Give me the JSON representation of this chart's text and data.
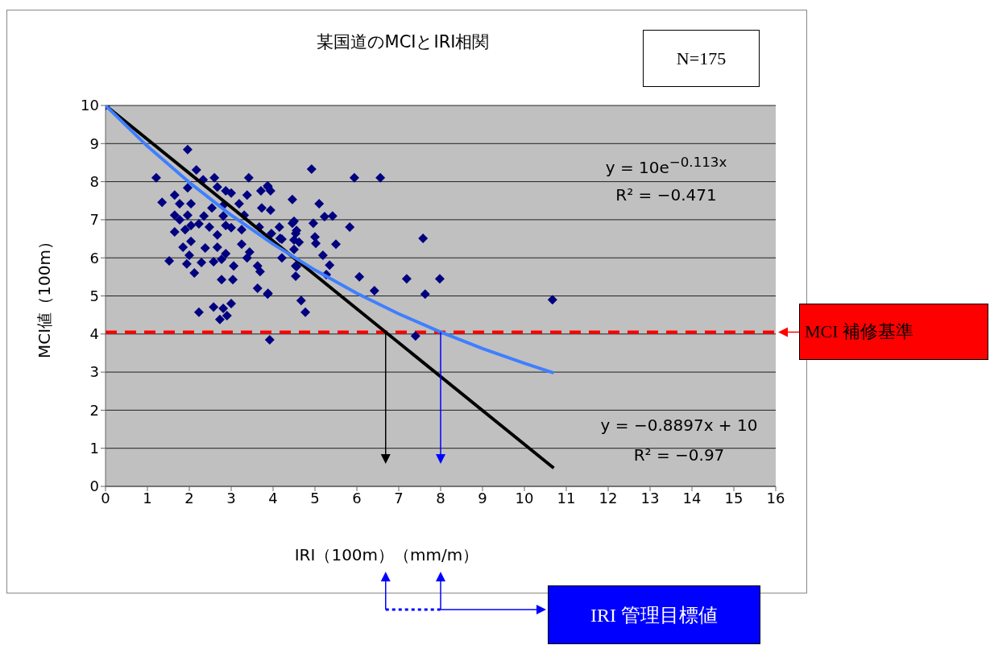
{
  "chart_data": {
    "type": "scatter",
    "title": "某国道のMCIとIRI相関",
    "xlabel": "IRI（100m）（mm/m）",
    "ylabel": "MCI値（100m）",
    "annotations": [
      "N=175",
      "y = 10e$^{−0.113x}$",
      "R² = −0.471",
      "y = −0.8897x + 10",
      "R² = −0.97",
      "IRI 管理目標値"
    ],
    "xlim": [
      0,
      16
    ],
    "xticks": [
      0,
      1,
      2,
      3,
      4,
      5,
      6,
      7,
      8,
      9,
      10,
      11,
      12,
      13,
      14,
      15,
      16
    ],
    "ylim": [
      0,
      10
    ],
    "yticks": [
      0,
      1,
      2,
      3,
      4,
      5,
      6,
      7,
      8,
      9,
      10
    ],
    "grid": "y",
    "legend": false,
    "ref_lines": [
      {
        "axis": "y",
        "value": 4.05,
        "label": "MCI 補修基準",
        "color": "#ff0000",
        "line_style": "dashed"
      }
    ],
    "series": [
      {
        "type": "scatter",
        "marker": "diamond",
        "color": "#000080",
        "x": [
          0,
          1.96,
          2.17,
          1.21,
          2.6,
          3.42,
          3.87,
          3.71,
          3.94,
          4.46,
          1.35,
          1.65,
          1.96,
          2.33,
          2.67,
          2.87,
          3.0,
          3.38,
          1.77,
          2.04,
          2.54,
          2.81,
          3.19,
          3.73,
          3.94,
          1.65,
          1.96,
          2.35,
          2.81,
          3.31,
          4.46,
          4.15,
          3.67,
          1.77,
          2.04,
          2.48,
          2.87,
          1.65,
          1.9,
          2.23,
          2.67,
          3.0,
          3.25,
          3.96,
          4.21,
          4.5,
          2.04,
          1.85,
          2.38,
          2.67,
          2.87,
          3.25,
          3.44,
          2.0,
          1.52,
          1.94,
          2.29,
          2.58,
          2.77,
          3.06,
          3.38,
          3.63,
          3.69,
          4.21,
          4.54,
          2.12,
          2.77,
          3.04,
          3.63,
          3.87,
          2.23,
          2.58,
          3.0,
          2.81,
          2.9,
          2.73,
          4.54,
          4.54,
          4.92,
          5.94,
          6.56,
          3.88,
          5.1,
          4.5,
          4.96,
          5.23,
          5.42,
          5.83,
          4.56,
          4.17,
          5.0,
          5.02,
          4.62,
          5.5,
          4.5,
          5.19,
          4.56,
          5.35,
          5.27,
          6.06,
          7.19,
          7.98,
          7.58,
          6.42,
          7.63,
          3.88,
          4.67,
          4.77,
          10.67,
          7.4,
          3.92
        ],
        "values": [
          10,
          8.84,
          8.31,
          8.1,
          8.1,
          8.1,
          7.89,
          7.76,
          7.76,
          7.53,
          7.46,
          7.65,
          7.84,
          8.05,
          7.86,
          7.76,
          7.7,
          7.65,
          7.42,
          7.42,
          7.31,
          7.38,
          7.42,
          7.31,
          7.25,
          7.12,
          7.12,
          7.1,
          7.1,
          7.12,
          6.91,
          6.81,
          6.81,
          7.0,
          6.85,
          6.81,
          6.85,
          6.68,
          6.74,
          6.89,
          6.6,
          6.79,
          6.74,
          6.64,
          6.49,
          6.47,
          6.43,
          6.28,
          6.26,
          6.28,
          6.11,
          6.36,
          6.15,
          6.07,
          5.92,
          5.84,
          5.88,
          5.9,
          5.96,
          5.79,
          6.0,
          5.79,
          5.64,
          6.0,
          5.79,
          5.6,
          5.43,
          5.43,
          5.2,
          5.05,
          4.57,
          4.71,
          4.8,
          4.67,
          4.48,
          4.38,
          5.52,
          6.64,
          8.33,
          8.1,
          8.1,
          7.86,
          7.42,
          6.96,
          6.91,
          7.08,
          7.1,
          6.81,
          6.72,
          6.51,
          6.55,
          6.38,
          6.41,
          6.36,
          6.22,
          6.07,
          5.77,
          5.81,
          5.56,
          5.5,
          5.45,
          5.45,
          6.51,
          5.14,
          5.05,
          5.07,
          4.88,
          4.57,
          4.9,
          3.95,
          3.85
        ]
      },
      {
        "type": "line",
        "color": "#000000",
        "x": [
          0,
          10.7
        ],
        "values": [
          10,
          0.48
        ]
      },
      {
        "type": "line",
        "color": "#3f7fff",
        "x": [
          0,
          1,
          2,
          3,
          4,
          5,
          6,
          7,
          8,
          9,
          10,
          10.7
        ],
        "values": [
          10,
          8.93,
          7.98,
          7.12,
          6.36,
          5.68,
          5.07,
          4.53,
          4.05,
          3.62,
          3.23,
          2.98
        ]
      }
    ]
  }
}
